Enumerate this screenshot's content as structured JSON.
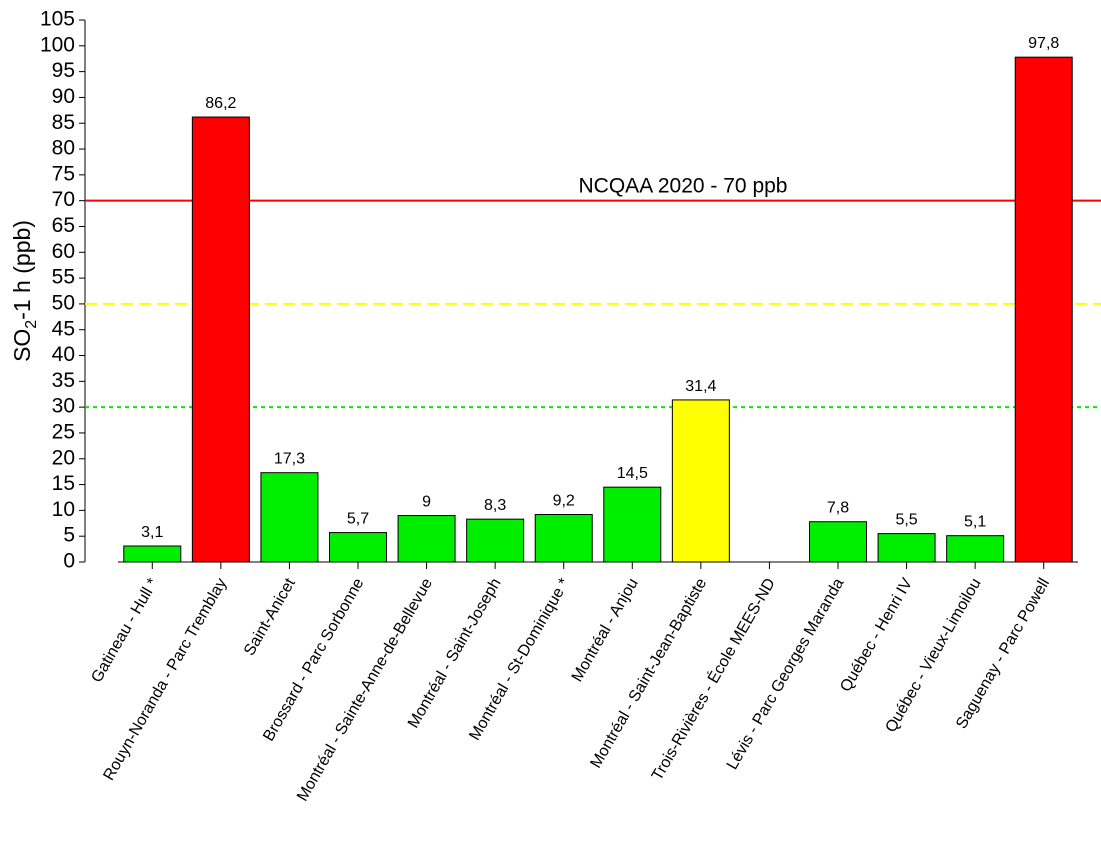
{
  "chart_data": {
    "type": "bar",
    "y_label": {
      "main": "SO",
      "sub": "2",
      "rest": "-1 h (ppb)"
    },
    "categories": [
      "Gatineau - Hull *",
      "Rouyn-Noranda - Parc Tremblay",
      "Saint-Anicet",
      "Brossard - Parc Sorbonne",
      "Montréal - Sainte-Anne-de-Bellevue",
      "Montréal - Saint-Joseph",
      "Montréal - St-Dominique *",
      "Montréal - Anjou",
      "Montréal - Saint-Jean-Baptiste",
      "Trois-Rivières - École MEES-ND",
      "Lévis - Parc Georges Maranda",
      "Québec - Henri IV",
      "Québec - Vieux-Limoilou",
      "Saguenay - Parc Powell"
    ],
    "values": [
      3.1,
      86.2,
      17.3,
      5.7,
      9,
      8.3,
      9.2,
      14.5,
      31.4,
      null,
      7.8,
      5.5,
      5.1,
      97.8
    ],
    "value_labels": [
      "3,1",
      "86,2",
      "17,3",
      "5,7",
      "9",
      "8,3",
      "9,2",
      "14,5",
      "31,4",
      null,
      "7,8",
      "5,5",
      "5,1",
      "97,8"
    ],
    "colors": [
      "#00ee00",
      "#ff0000",
      "#00ee00",
      "#00ee00",
      "#00ee00",
      "#00ee00",
      "#00ee00",
      "#00ee00",
      "#ffff00",
      "#00ee00",
      "#00ee00",
      "#00ee00",
      "#00ee00",
      "#ff0000"
    ],
    "ylim": [
      0,
      105
    ],
    "yticks": [
      0,
      5,
      10,
      15,
      20,
      25,
      30,
      35,
      40,
      45,
      50,
      55,
      60,
      65,
      70,
      75,
      80,
      85,
      90,
      95,
      100,
      105
    ],
    "reference_lines": [
      {
        "value": 70,
        "color": "#ff0000",
        "style": "solid",
        "label": "NCQAA 2020 - 70 ppb"
      },
      {
        "value": 50,
        "color": "#ffff00",
        "style": "dashed"
      },
      {
        "value": 30,
        "color": "#00ee00",
        "style": "dotted"
      }
    ]
  }
}
